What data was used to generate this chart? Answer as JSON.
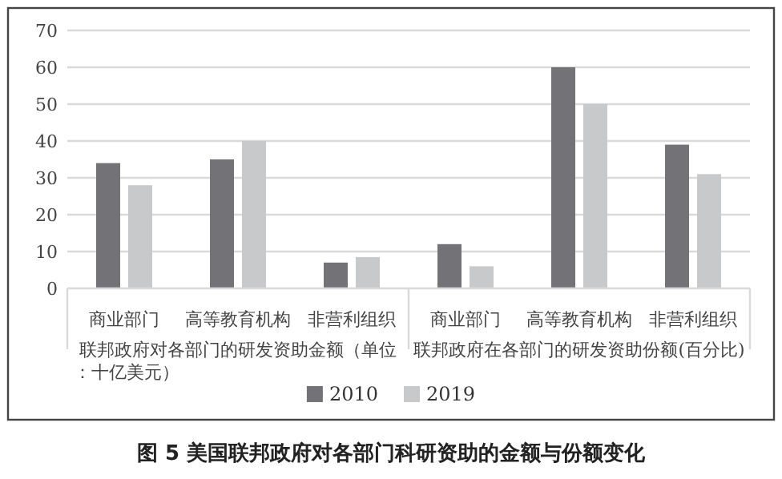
{
  "chart_data": {
    "type": "bar",
    "title": "图 5 美国联邦政府对各部门科研资助的金额与份额变化",
    "categories": [
      "商业部门",
      "高等教育机构",
      "非营利组织",
      "商业部门",
      "高等教育机构",
      "非营利组织"
    ],
    "annotations": [
      "联邦政府对各部门的研发资助金额（单位：十亿美元）",
      "联邦政府在各部门的研发资助份额(百分比)"
    ],
    "series": [
      {
        "name": "2010",
        "color": "#737377",
        "values": [
          34,
          35,
          7,
          12,
          60,
          39
        ]
      },
      {
        "name": "2019",
        "color": "#c8c9cb",
        "values": [
          28,
          40,
          8.5,
          6,
          50,
          31
        ]
      }
    ],
    "ylim": [
      0,
      70
    ],
    "yticks": [
      0,
      10,
      20,
      30,
      40,
      50,
      60,
      70
    ],
    "grid": "y",
    "legend": "bottom"
  }
}
